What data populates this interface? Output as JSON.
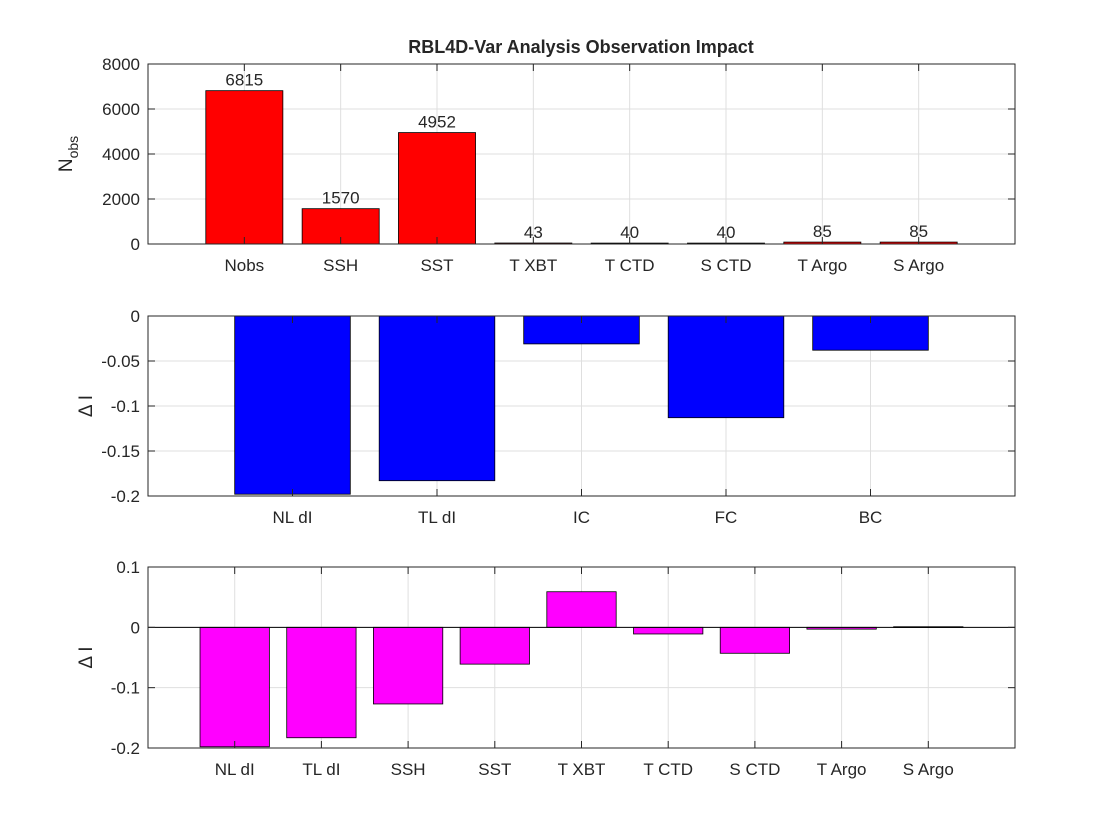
{
  "chart_data": [
    {
      "type": "bar",
      "title": "RBL4D-Var Analysis Observation Impact",
      "xlabel": "",
      "ylabel": "N",
      "ylabel_subscript": "obs",
      "ylim": [
        0,
        8000
      ],
      "yticks": [
        0,
        2000,
        4000,
        6000,
        8000
      ],
      "ytick_labels": [
        "0",
        "2000",
        "4000",
        "6000",
        "8000"
      ],
      "xlim": [
        0,
        9
      ],
      "grid": true,
      "bar_color": "#ff0000",
      "categories": [
        "Nobs",
        "SSH",
        "SST",
        "T XBT",
        "T CTD",
        "S CTD",
        "T Argo",
        "S Argo"
      ],
      "values": [
        6815,
        1570,
        4952,
        43,
        40,
        40,
        85,
        85
      ],
      "value_labels": [
        "6815",
        "1570",
        "4952",
        "43",
        "40",
        "40",
        "85",
        "85"
      ]
    },
    {
      "type": "bar",
      "title": "",
      "xlabel": "",
      "ylabel": "Δ I",
      "ylim": [
        -0.2,
        0
      ],
      "yticks": [
        -0.2,
        -0.15,
        -0.1,
        -0.05,
        0
      ],
      "ytick_labels": [
        "-0.2",
        "-0.15",
        "-0.1",
        "-0.05",
        "0"
      ],
      "xlim": [
        0,
        6
      ],
      "grid": true,
      "bar_color": "#0000ff",
      "categories": [
        "NL dI",
        "TL dI",
        "IC",
        "FC",
        "BC"
      ],
      "values": [
        -0.198,
        -0.183,
        -0.031,
        -0.113,
        -0.038
      ]
    },
    {
      "type": "bar",
      "title": "",
      "xlabel": "",
      "ylabel": "Δ I",
      "ylim": [
        -0.2,
        0.1
      ],
      "yticks": [
        -0.2,
        -0.1,
        0,
        0.1
      ],
      "ytick_labels": [
        "-0.2",
        "-0.1",
        "0",
        "0.1"
      ],
      "xlim": [
        0,
        10
      ],
      "grid": true,
      "bar_color": "#ff00ff",
      "categories": [
        "NL dI",
        "TL dI",
        "SSH",
        "SST",
        "T XBT",
        "T CTD",
        "S CTD",
        "T Argo",
        "S Argo"
      ],
      "values": [
        -0.198,
        -0.183,
        -0.127,
        -0.061,
        0.059,
        -0.011,
        -0.043,
        -0.003,
        0.001
      ]
    }
  ]
}
